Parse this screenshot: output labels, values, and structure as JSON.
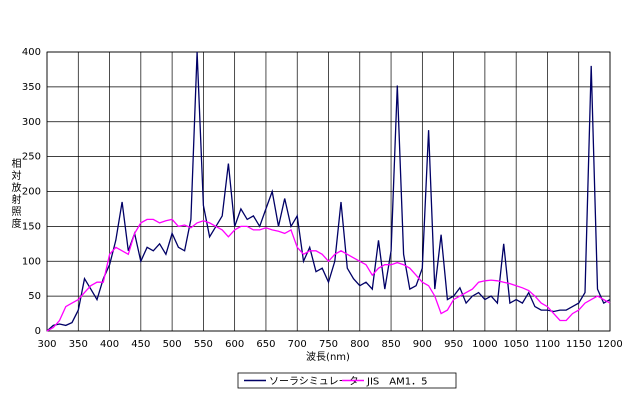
{
  "chart_data": {
    "type": "line",
    "y_label": "相対放射照度",
    "x_label": "波長(nm)",
    "x": [
      300,
      310,
      320,
      330,
      340,
      350,
      360,
      370,
      380,
      390,
      400,
      410,
      420,
      430,
      440,
      450,
      460,
      470,
      480,
      490,
      500,
      510,
      520,
      530,
      540,
      550,
      560,
      570,
      580,
      590,
      600,
      610,
      620,
      630,
      640,
      650,
      660,
      670,
      680,
      690,
      700,
      710,
      720,
      730,
      740,
      750,
      760,
      770,
      780,
      790,
      800,
      810,
      820,
      830,
      840,
      850,
      860,
      870,
      880,
      890,
      900,
      910,
      920,
      930,
      940,
      950,
      960,
      970,
      980,
      990,
      1000,
      1010,
      1020,
      1030,
      1040,
      1050,
      1060,
      1070,
      1080,
      1090,
      1100,
      1110,
      1120,
      1130,
      1140,
      1150,
      1160,
      1170,
      1180,
      1190,
      1200
    ],
    "series": [
      {
        "name": "ソーラシミュレータ",
        "color": "#000066",
        "values": [
          0,
          8,
          10,
          8,
          12,
          30,
          75,
          60,
          45,
          75,
          95,
          130,
          185,
          115,
          140,
          100,
          120,
          115,
          125,
          110,
          140,
          120,
          115,
          160,
          400,
          180,
          135,
          150,
          165,
          240,
          150,
          175,
          160,
          165,
          150,
          175,
          200,
          150,
          190,
          150,
          165,
          100,
          120,
          85,
          90,
          70,
          100,
          185,
          90,
          75,
          65,
          70,
          60,
          130,
          60,
          115,
          352,
          110,
          60,
          65,
          90,
          288,
          60,
          138,
          45,
          50,
          62,
          40,
          50,
          55,
          45,
          50,
          40,
          125,
          40,
          45,
          40,
          55,
          35,
          30,
          30,
          28,
          30,
          30,
          35,
          40,
          55,
          380,
          60,
          40,
          45
        ]
      },
      {
        "name": "JIS　AM1．5",
        "color": "#ff00ff",
        "values": [
          0,
          5,
          15,
          35,
          40,
          45,
          55,
          65,
          70,
          70,
          110,
          120,
          115,
          110,
          140,
          155,
          160,
          160,
          155,
          158,
          160,
          150,
          152,
          148,
          155,
          158,
          155,
          150,
          145,
          135,
          145,
          150,
          150,
          145,
          145,
          148,
          145,
          143,
          140,
          145,
          120,
          110,
          115,
          115,
          110,
          100,
          110,
          115,
          110,
          105,
          100,
          95,
          80,
          90,
          95,
          95,
          98,
          95,
          90,
          80,
          70,
          65,
          50,
          25,
          30,
          45,
          50,
          55,
          60,
          70,
          72,
          73,
          72,
          70,
          68,
          65,
          62,
          58,
          50,
          40,
          35,
          25,
          15,
          15,
          25,
          30,
          40,
          45,
          50,
          45,
          40
        ]
      }
    ],
    "xlim": [
      300,
      1200
    ],
    "xticks": [
      300,
      350,
      400,
      450,
      500,
      550,
      600,
      650,
      700,
      750,
      800,
      850,
      900,
      950,
      1000,
      1050,
      1100,
      1150,
      1200
    ],
    "ylim": [
      0,
      400
    ],
    "yticks": [
      0,
      50,
      100,
      150,
      200,
      250,
      300,
      350,
      400
    ],
    "grid": true,
    "legend": "bottom"
  }
}
